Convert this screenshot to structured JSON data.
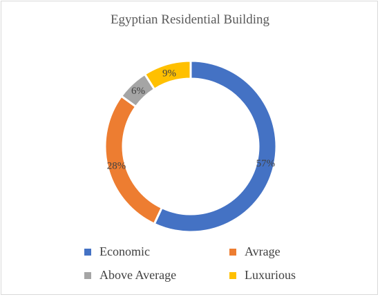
{
  "chart_data": {
    "type": "pie",
    "variant": "donut",
    "title": "Egyptian Residential Building",
    "categories": [
      "Economic",
      "Avrage",
      "Above Average",
      "Luxurious"
    ],
    "values": [
      57,
      28,
      6,
      9
    ],
    "labels": [
      "57%",
      "28%",
      "6%",
      "9%"
    ],
    "colors": [
      "#4472C4",
      "#ED7D31",
      "#A5A5A5",
      "#FFC000"
    ],
    "legend_position": "bottom"
  }
}
